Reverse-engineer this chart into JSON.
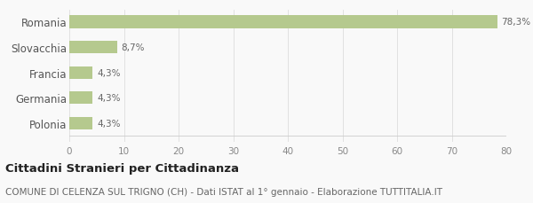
{
  "categories": [
    "Polonia",
    "Germania",
    "Francia",
    "Slovacchia",
    "Romania"
  ],
  "values": [
    4.3,
    4.3,
    4.3,
    8.7,
    78.3
  ],
  "labels": [
    "4,3%",
    "4,3%",
    "4,3%",
    "8,7%",
    "78,3%"
  ],
  "bar_color": "#b5c98e",
  "background_color": "#f9f9f9",
  "xlim": [
    0,
    80
  ],
  "xticks": [
    0,
    10,
    20,
    30,
    40,
    50,
    60,
    70,
    80
  ],
  "title_bold": "Cittadini Stranieri per Cittadinanza",
  "subtitle": "COMUNE DI CELENZA SUL TRIGNO (CH) - Dati ISTAT al 1° gennaio - Elaborazione TUTTITALIA.IT",
  "title_fontsize": 9.5,
  "subtitle_fontsize": 7.5,
  "label_fontsize": 7.5,
  "tick_fontsize": 7.5,
  "ytick_fontsize": 8.5,
  "bar_height": 0.5
}
